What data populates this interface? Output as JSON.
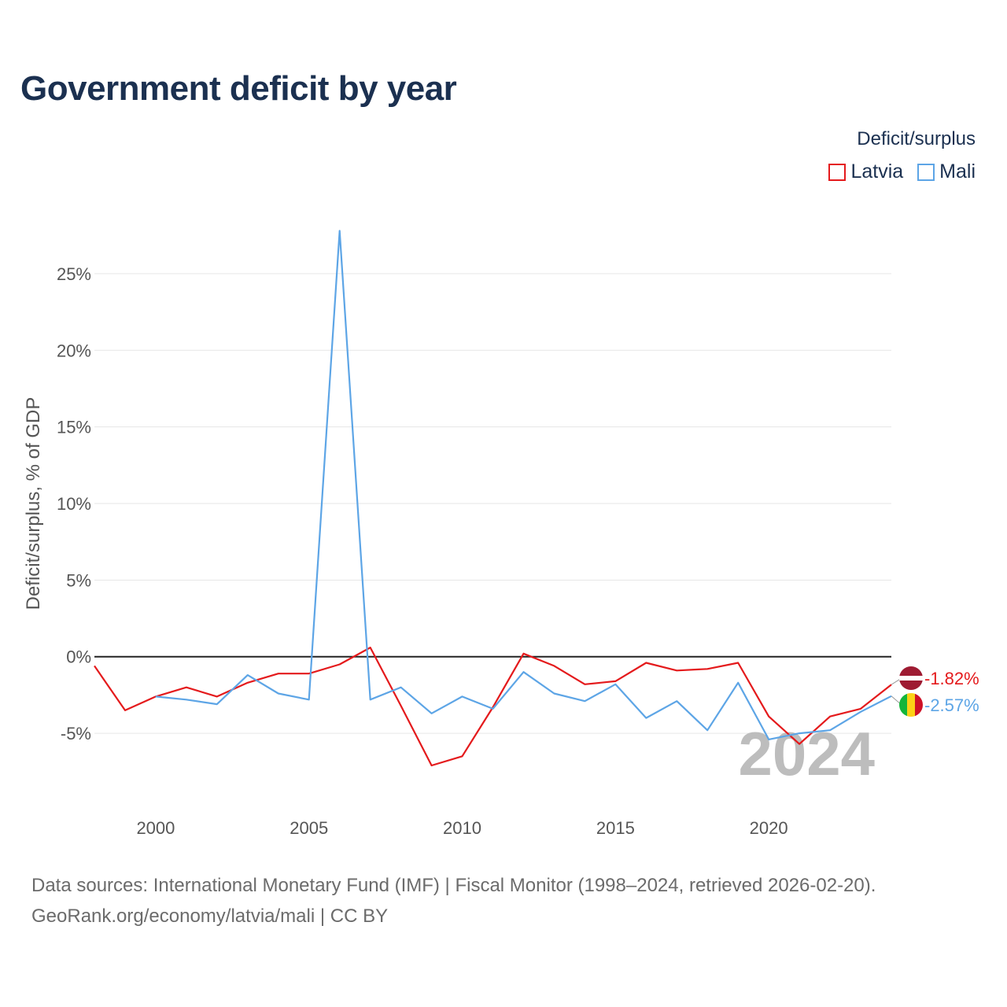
{
  "page": {
    "title": "Government deficit by year",
    "source_line1": "Data sources: International Monetary Fund (IMF) | Fiscal Monitor (1998–2024, retrieved 2026-02-20).",
    "source_line2": "GeoRank.org/economy/latvia/mali | CC BY"
  },
  "legend": {
    "title": "Deficit/surplus",
    "items": [
      {
        "label": "Latvia",
        "color": "#e41a1c"
      },
      {
        "label": "Mali",
        "color": "#5da5e6"
      }
    ]
  },
  "chart_data": {
    "type": "line",
    "title": "Government deficit by year",
    "xlabel": "",
    "ylabel": "Deficit/surplus, % of GDP",
    "x": [
      1998,
      1999,
      2000,
      2001,
      2002,
      2003,
      2004,
      2005,
      2006,
      2007,
      2008,
      2009,
      2010,
      2011,
      2012,
      2013,
      2014,
      2015,
      2016,
      2017,
      2018,
      2019,
      2020,
      2021,
      2022,
      2023,
      2024
    ],
    "xlim": [
      1998,
      2024
    ],
    "ylim": [
      -9,
      29
    ],
    "x_ticks": [
      2000,
      2005,
      2010,
      2015,
      2020
    ],
    "x_tick_labels": [
      "2000",
      "2005",
      "2010",
      "2015",
      "2020"
    ],
    "y_ticks": [
      -5,
      0,
      5,
      10,
      15,
      20,
      25
    ],
    "y_tick_labels": [
      "-5%",
      "0%",
      "5%",
      "10%",
      "15%",
      "20%",
      "25%"
    ],
    "grid": true,
    "legend_position": "top-right",
    "year_label": "2024",
    "series": [
      {
        "name": "Latvia",
        "color": "#e41a1c",
        "values": [
          -0.6,
          -3.5,
          -2.6,
          -2.0,
          -2.6,
          -1.7,
          -1.1,
          -1.1,
          -0.5,
          0.6,
          -3.2,
          -7.1,
          -6.5,
          -3.3,
          0.2,
          -0.6,
          -1.8,
          -1.6,
          -0.4,
          -0.9,
          -0.8,
          -0.4,
          -3.9,
          -5.7,
          -3.9,
          -3.4,
          -1.82
        ],
        "end_label": "-1.82%"
      },
      {
        "name": "Mali",
        "color": "#5da5e6",
        "values": [
          null,
          null,
          -2.6,
          -2.8,
          -3.1,
          -1.2,
          -2.4,
          -2.8,
          27.8,
          -2.8,
          -2.0,
          -3.7,
          -2.6,
          -3.4,
          -1.0,
          -2.4,
          -2.9,
          -1.8,
          -4.0,
          -2.9,
          -4.8,
          -1.7,
          -5.4,
          -5.0,
          -4.8,
          -3.6,
          -2.57
        ],
        "end_label": "-2.57%"
      }
    ]
  }
}
